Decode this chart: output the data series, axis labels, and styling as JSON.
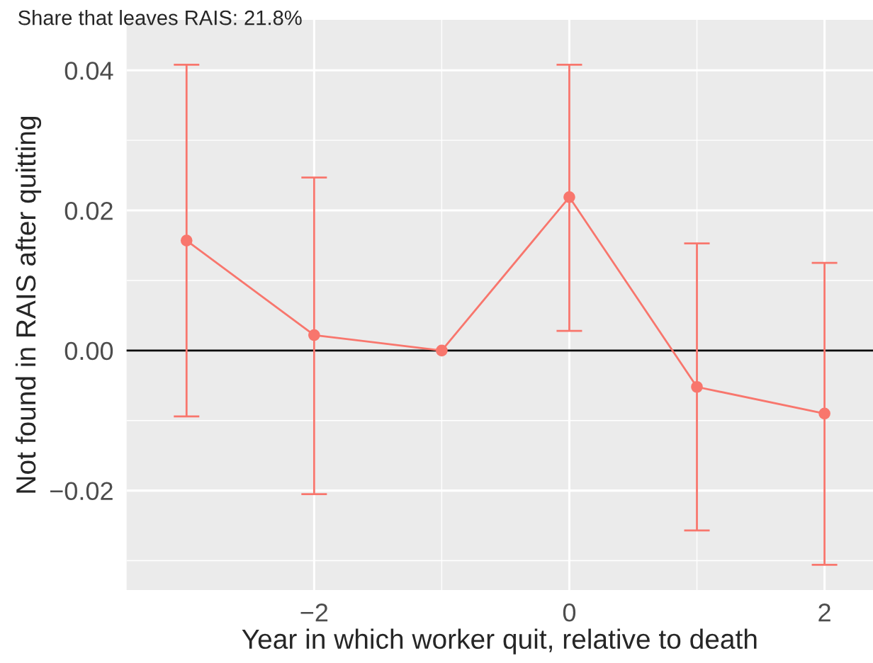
{
  "chart_data": {
    "type": "line",
    "title": "Share that leaves RAIS: 21.8%",
    "xlabel": "Year in which worker quit, relative to death",
    "ylabel": "Not found in RAIS after quitting",
    "x": [
      -3,
      -2,
      -1,
      0,
      1,
      2
    ],
    "series": [
      {
        "color": "#f8766d",
        "values": [
          0.0157,
          0.0022,
          0.0,
          0.0219,
          -0.0052,
          -0.009
        ],
        "errors": [
          [
            -0.0094,
            0.0408
          ],
          [
            -0.0205,
            0.0247
          ],
          null,
          [
            0.0028,
            0.0408
          ],
          [
            -0.0257,
            0.0153
          ],
          [
            -0.0306,
            0.0125
          ]
        ]
      }
    ],
    "marker": "circle",
    "xlim": [
      -3.47,
      2.38
    ],
    "xticks": [
      {
        "value": -2,
        "label": "−2"
      },
      0,
      2
    ],
    "ylim": [
      -0.0342,
      0.0472
    ],
    "yticks": [
      {
        "value": -0.02,
        "label": "−0.02"
      },
      {
        "value": 0,
        "label": "0.00"
      },
      {
        "value": 0.02,
        "label": "0.02"
      },
      {
        "value": 0.04,
        "label": "0.04"
      }
    ],
    "ref_lines": [
      {
        "axis": "y",
        "value": 0,
        "color": "#000000"
      }
    ],
    "grid": true
  }
}
